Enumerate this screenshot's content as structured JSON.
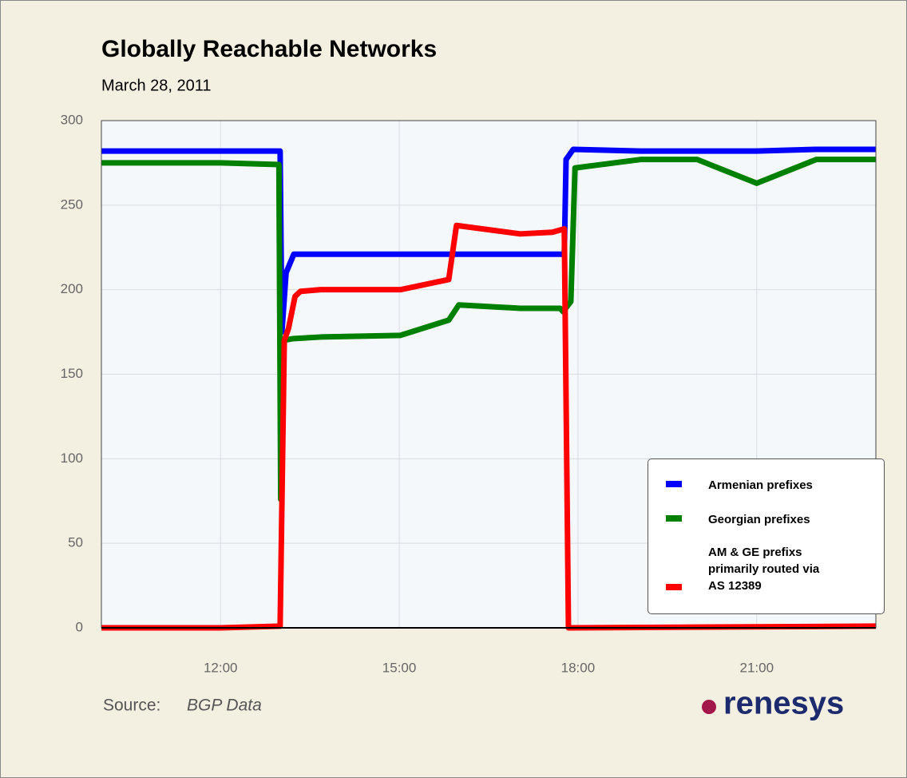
{
  "chart_data": {
    "type": "line",
    "title": "Globally Reachable Networks",
    "subtitle": "March 28, 2011",
    "source_label": "Source:",
    "source": "BGP Data",
    "logo": "renesys",
    "xlim": [
      10,
      23
    ],
    "xticks": [
      {
        "value": 12,
        "label": "12:00"
      },
      {
        "value": 15,
        "label": "15:00"
      },
      {
        "value": 18,
        "label": "18:00"
      },
      {
        "value": 21,
        "label": "21:00"
      }
    ],
    "ylim": [
      0,
      300
    ],
    "yticks": [
      0,
      50,
      100,
      150,
      200,
      250,
      300
    ],
    "grid": true,
    "legend": "lower right",
    "series": [
      {
        "name": "Armenian prefixes",
        "color": "#0000ff",
        "x": [
          10,
          13.0,
          13.03,
          13.1,
          13.23,
          17.77,
          17.8,
          17.92,
          19.05,
          21,
          22,
          23
        ],
        "values": [
          282,
          282,
          175,
          210,
          221,
          221,
          277,
          283,
          282,
          282,
          283,
          283
        ]
      },
      {
        "name": "Georgian prefixes",
        "color": "#008000",
        "x": [
          10,
          12,
          12.98,
          13.01,
          13.05,
          13.21,
          13.68,
          15.02,
          15.83,
          16,
          17.03,
          17.7,
          17.75,
          17.88,
          17.95,
          19.05,
          20,
          21,
          22,
          23
        ],
        "values": [
          275,
          275,
          274,
          76,
          170,
          171,
          172,
          173,
          182,
          191,
          189,
          189,
          187,
          193,
          272,
          277,
          277,
          263,
          277,
          277
        ]
      },
      {
        "name": "AM & GE prefixs primarily routed via AS 12389",
        "color": "#ff0000",
        "x": [
          10,
          12,
          13.0,
          13.07,
          13.14,
          13.25,
          13.34,
          13.68,
          15.02,
          15.83,
          15.96,
          17.03,
          17.57,
          17.77,
          17.84,
          23
        ],
        "values": [
          0,
          0,
          1,
          170,
          177,
          196,
          199,
          200,
          200,
          206,
          238,
          233,
          234,
          236,
          0,
          1
        ]
      }
    ]
  }
}
